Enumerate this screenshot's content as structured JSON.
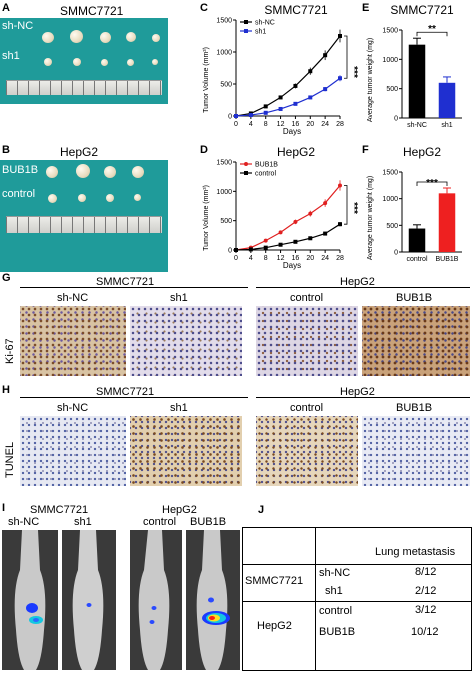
{
  "panels": {
    "A": {
      "letter": "A",
      "title": "SMMC7721",
      "row1": "sh-NC",
      "row2": "sh1"
    },
    "B": {
      "letter": "B",
      "title": "HepG2",
      "row1": "BUB1B",
      "row2": "control"
    },
    "C": {
      "letter": "C",
      "title": "SMMC7721",
      "ylabel": "Tumor Volume (mm³)",
      "xlabel": "Days",
      "sig": "***"
    },
    "D": {
      "letter": "D",
      "title": "HepG2",
      "ylabel": "Tumor Volume (mm³)",
      "xlabel": "Days",
      "sig": "***"
    },
    "E": {
      "letter": "E",
      "title": "SMMC7721",
      "ylabel": "Average tumor weight (mg)",
      "sig": "**"
    },
    "F": {
      "letter": "F",
      "title": "HepG2",
      "ylabel": "Average tumor weight (mg)",
      "sig": "***"
    },
    "G": {
      "letter": "G",
      "side": "Ki-67",
      "group1": "SMMC7721",
      "group2": "HepG2",
      "cols": [
        "sh-NC",
        "sh1",
        "control",
        "BUB1B"
      ]
    },
    "H": {
      "letter": "H",
      "side": "TUNEL",
      "group1": "SMMC7721",
      "group2": "HepG2",
      "cols": [
        "sh-NC",
        "sh1",
        "control",
        "BUB1B"
      ]
    },
    "I": {
      "letter": "I",
      "group1": "SMMC7721",
      "group2": "HepG2",
      "cols": [
        "sh-NC",
        "sh1",
        "control",
        "BUB1B"
      ]
    },
    "J": {
      "letter": "J",
      "header": "Lung metastasis",
      "rows": [
        {
          "group": "SMMC7721",
          "name": "sh-NC",
          "value": "8/12"
        },
        {
          "group": "",
          "name": "sh1",
          "value": "2/12"
        },
        {
          "group": "HepG2",
          "name": "control",
          "value": "3/12"
        },
        {
          "group": "",
          "name": "BUB1B",
          "value": "10/12"
        }
      ]
    }
  },
  "chart_data": [
    {
      "id": "C",
      "type": "line",
      "title": "SMMC7721",
      "xlabel": "Days",
      "ylabel": "Tumor Volume (mm³)",
      "x": [
        0,
        4,
        8,
        12,
        16,
        20,
        24,
        28
      ],
      "xlim": [
        0,
        28
      ],
      "ylim": [
        0,
        1500
      ],
      "yticks": [
        0,
        500,
        1000,
        1500
      ],
      "legend": "top-left",
      "series": [
        {
          "name": "sh-NC",
          "color": "#000000",
          "marker": "square",
          "values": [
            0,
            40,
            150,
            290,
            470,
            700,
            950,
            1250
          ]
        },
        {
          "name": "sh1",
          "color": "#1f2fd0",
          "marker": "square",
          "values": [
            0,
            15,
            50,
            110,
            190,
            290,
            420,
            590
          ]
        }
      ]
    },
    {
      "id": "D",
      "type": "line",
      "title": "HepG2",
      "xlabel": "Days",
      "ylabel": "Tumor Volume (mm³)",
      "x": [
        0,
        4,
        8,
        12,
        16,
        20,
        24,
        28
      ],
      "xlim": [
        0,
        28
      ],
      "ylim": [
        0,
        1500
      ],
      "yticks": [
        0,
        500,
        1000,
        1500
      ],
      "legend": "top-left",
      "series": [
        {
          "name": "BUB1B",
          "color": "#e02020",
          "marker": "circle",
          "values": [
            0,
            40,
            160,
            300,
            480,
            620,
            800,
            1100
          ]
        },
        {
          "name": "control",
          "color": "#000000",
          "marker": "square",
          "values": [
            0,
            10,
            40,
            90,
            140,
            200,
            280,
            440
          ]
        }
      ]
    },
    {
      "id": "E",
      "type": "bar",
      "title": "SMMC7721",
      "ylabel": "Average tumor weight (mg)",
      "categories": [
        "sh-NC",
        "sh1"
      ],
      "values": [
        1250,
        600
      ],
      "errors": [
        110,
        100
      ],
      "colors": [
        "#000000",
        "#1f2fd0"
      ],
      "ylim": [
        0,
        1500
      ],
      "yticks": [
        0,
        500,
        1000,
        1500
      ]
    },
    {
      "id": "F",
      "type": "bar",
      "title": "HepG2",
      "ylabel": "Average tumor weight (mg)",
      "categories": [
        "control",
        "BUB1B"
      ],
      "values": [
        440,
        1100
      ],
      "errors": [
        70,
        100
      ],
      "colors": [
        "#000000",
        "#ee2020"
      ],
      "ylim": [
        0,
        1500
      ],
      "yticks": [
        0,
        500,
        1000,
        1500
      ]
    }
  ]
}
